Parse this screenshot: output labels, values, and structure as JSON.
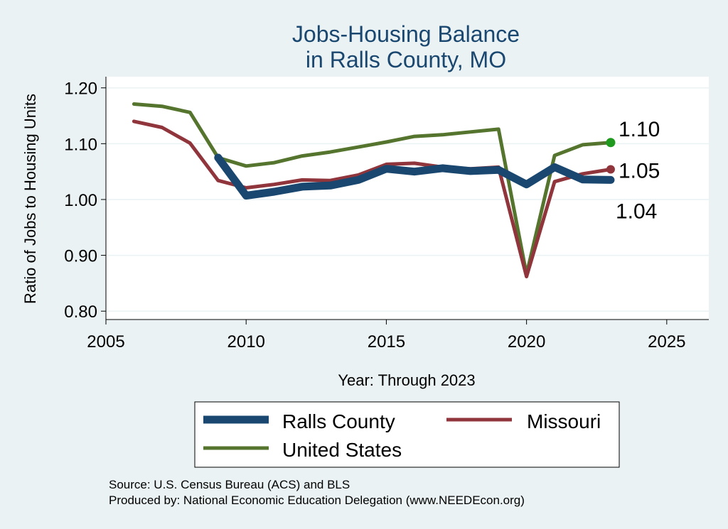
{
  "chart_data": {
    "type": "line",
    "title_line1": "Jobs-Housing Balance",
    "title_line2": "in Ralls County, MO",
    "xlabel": "Year: Through 2023",
    "ylabel": "Ratio of Jobs to Housing Units",
    "xlim": [
      2005,
      2026.5
    ],
    "ylim": [
      0.785,
      1.22
    ],
    "x_ticks": [
      2005,
      2010,
      2015,
      2020,
      2025
    ],
    "y_ticks": [
      0.8,
      0.9,
      1.0,
      1.1,
      1.2
    ],
    "y_tick_labels": [
      "0.80",
      "0.90",
      "1.00",
      "1.10",
      "1.20"
    ],
    "grid": true,
    "series": [
      {
        "key": "us",
        "name": "United States",
        "color": "#55752f",
        "x": [
          2006,
          2007,
          2008,
          2009,
          2010,
          2011,
          2012,
          2013,
          2014,
          2015,
          2016,
          2017,
          2018,
          2019,
          2020,
          2021,
          2022,
          2023
        ],
        "values": [
          1.171,
          1.167,
          1.156,
          1.075,
          1.06,
          1.066,
          1.078,
          1.085,
          1.094,
          1.103,
          1.113,
          1.116,
          1.121,
          1.126,
          0.866,
          1.079,
          1.098,
          1.102
        ],
        "end_label": "1.10"
      },
      {
        "key": "mo",
        "name": "Missouri",
        "color": "#90353b",
        "x": [
          2006,
          2007,
          2008,
          2009,
          2010,
          2011,
          2012,
          2013,
          2014,
          2015,
          2016,
          2017,
          2018,
          2019,
          2020,
          2021,
          2022,
          2023
        ],
        "values": [
          1.14,
          1.129,
          1.101,
          1.034,
          1.021,
          1.027,
          1.035,
          1.034,
          1.044,
          1.063,
          1.065,
          1.058,
          1.055,
          1.058,
          0.862,
          1.032,
          1.046,
          1.054
        ],
        "end_label": "1.05"
      },
      {
        "key": "rc",
        "name": "Ralls County",
        "color": "#1a476f",
        "x": [
          2009,
          2010,
          2011,
          2012,
          2013,
          2014,
          2015,
          2016,
          2017,
          2018,
          2019,
          2020,
          2021,
          2022,
          2023
        ],
        "values": [
          1.075,
          1.007,
          1.014,
          1.023,
          1.025,
          1.035,
          1.055,
          1.05,
          1.056,
          1.051,
          1.053,
          1.027,
          1.058,
          1.036,
          1.035
        ],
        "end_label": "1.04"
      }
    ],
    "legend": [
      {
        "name": "Ralls County",
        "color": "#1a476f"
      },
      {
        "name": "Missouri",
        "color": "#90353b"
      },
      {
        "name": "United States",
        "color": "#55752f"
      }
    ],
    "source_line1": "Source: U.S. Census Bureau (ACS) and BLS",
    "source_line2": "Produced by: National Economic Education Delegation (www.NEEDEcon.org)"
  }
}
